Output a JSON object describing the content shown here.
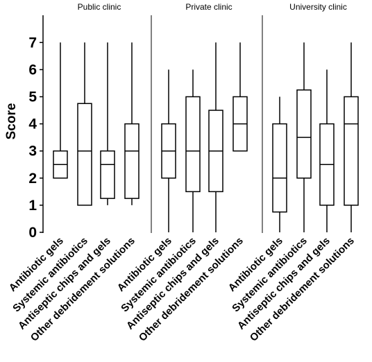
{
  "chart_data": {
    "type": "boxplot",
    "ylabel": "Score",
    "ylim": [
      0,
      7.5
    ],
    "yticks": [
      0,
      1,
      2,
      3,
      4,
      5,
      6,
      7
    ],
    "grid": false,
    "line_color": "#000000",
    "panels": [
      {
        "title": "Public clinic",
        "boxes": [
          {
            "category": "Antibiotic gels",
            "min": 2,
            "q1": 2,
            "median": 2.5,
            "q3": 3,
            "max": 7
          },
          {
            "category": "Systemic antibiotics",
            "min": 1,
            "q1": 1,
            "median": 3,
            "q3": 4.75,
            "max": 7
          },
          {
            "category": "Antiseptic chips and gels",
            "min": 1,
            "q1": 1.25,
            "median": 2.5,
            "q3": 3,
            "max": 7
          },
          {
            "category": "Other debridement solutions",
            "min": 1,
            "q1": 1.25,
            "median": 3,
            "q3": 4,
            "max": 7
          }
        ]
      },
      {
        "title": "Private clinic",
        "boxes": [
          {
            "category": "Antibiotic gels",
            "min": 0,
            "q1": 2,
            "median": 3,
            "q3": 4,
            "max": 6
          },
          {
            "category": "Systemic antibiotics",
            "min": 0,
            "q1": 1.5,
            "median": 3,
            "q3": 5,
            "max": 6
          },
          {
            "category": "Antiseptic chips and gels",
            "min": 0,
            "q1": 1.5,
            "median": 3,
            "q3": 4.5,
            "max": 7
          },
          {
            "category": "Other debridement solutions",
            "min": 3,
            "q1": 3,
            "median": 4,
            "q3": 5,
            "max": 7
          }
        ]
      },
      {
        "title": "University clinic",
        "boxes": [
          {
            "category": "Antibiotic gels",
            "min": 0,
            "q1": 0.75,
            "median": 2,
            "q3": 4,
            "max": 5
          },
          {
            "category": "Systemic antibiotics",
            "min": 0,
            "q1": 2,
            "median": 3.5,
            "q3": 5.25,
            "max": 7
          },
          {
            "category": "Antiseptic chips and gels",
            "min": 0,
            "q1": 1,
            "median": 2.5,
            "q3": 4,
            "max": 6
          },
          {
            "category": "Other debridement solutions",
            "min": 0,
            "q1": 1,
            "median": 4,
            "q3": 5,
            "max": 7
          }
        ]
      }
    ]
  }
}
